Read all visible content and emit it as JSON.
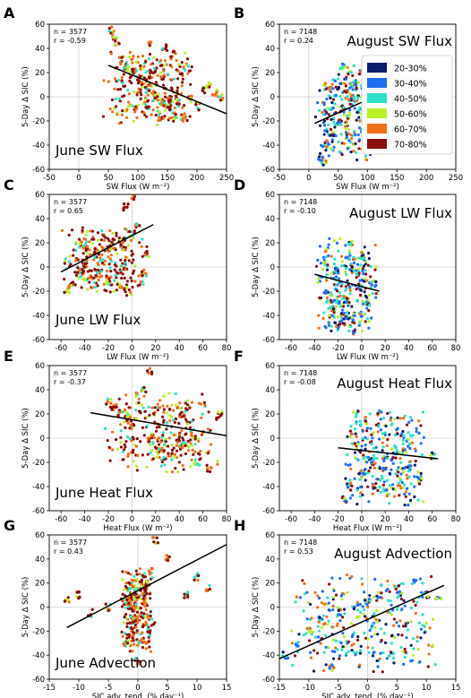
{
  "legend": {
    "title": "",
    "placement": "inside panel B, right",
    "entries": [
      {
        "label": "20-30%",
        "color": "#0b1d6b"
      },
      {
        "label": "30-40%",
        "color": "#1f6ef0"
      },
      {
        "label": "40-50%",
        "color": "#2fe0c8"
      },
      {
        "label": "50-60%",
        "color": "#b8f02a"
      },
      {
        "label": "60-70%",
        "color": "#f07018"
      },
      {
        "label": "70-80%",
        "color": "#8b0f0f"
      }
    ]
  },
  "chart_data": [
    {
      "type": "scatter",
      "panel": "A",
      "title": "June SW Flux",
      "xlabel": "SW Flux (W m⁻²)",
      "ylabel": "5-Day Δ SIC (%)",
      "stats": {
        "n": "n = 3577",
        "r": "r = -0.59"
      },
      "xlim": [
        -50,
        250
      ],
      "ylim": [
        -60,
        60
      ],
      "xticks": [
        "-50",
        "0",
        "50",
        "100",
        "150",
        "200",
        "250"
      ],
      "yticks": [
        "-60",
        "-40",
        "-20",
        "0",
        "20",
        "40",
        "60"
      ],
      "fit_line": {
        "x": [
          50,
          250
        ],
        "y": [
          26,
          -14
        ]
      },
      "cluster": {
        "xmin": 40,
        "xmax": 200,
        "ymin": -25,
        "ymax": 40,
        "color_bias": "warm"
      },
      "points": [
        [
          55,
          55
        ],
        [
          60,
          50
        ],
        [
          65,
          45
        ],
        [
          70,
          30
        ],
        [
          80,
          25
        ],
        [
          90,
          20
        ],
        [
          100,
          15
        ],
        [
          110,
          10
        ],
        [
          120,
          8
        ],
        [
          130,
          0
        ],
        [
          140,
          -5
        ],
        [
          150,
          -10
        ],
        [
          160,
          -15
        ],
        [
          170,
          -5
        ],
        [
          180,
          -18
        ],
        [
          190,
          0
        ],
        [
          200,
          -8
        ],
        [
          210,
          5
        ],
        [
          220,
          10
        ],
        [
          230,
          3
        ],
        [
          240,
          0
        ],
        [
          120,
          45
        ],
        [
          145,
          40
        ],
        [
          160,
          35
        ]
      ]
    },
    {
      "type": "scatter",
      "panel": "B",
      "title": "August SW Flux",
      "xlabel": "SW Flux (W m⁻²)",
      "ylabel": "5-Day Δ SIC (%)",
      "stats": {
        "n": "n = 7148",
        "r": "r = 0.24"
      },
      "xlim": [
        -50,
        250
      ],
      "ylim": [
        -60,
        60
      ],
      "xticks": [
        "-50",
        "0",
        "50",
        "100",
        "150",
        "200",
        "250"
      ],
      "yticks": [
        "-60",
        "-40",
        "-20",
        "0",
        "20",
        "40",
        "60"
      ],
      "fit_line": {
        "x": [
          10,
          120
        ],
        "y": [
          -22,
          2
        ]
      },
      "cluster": {
        "xmin": 10,
        "xmax": 120,
        "ymin": -55,
        "ymax": 28,
        "color_bias": "mixed"
      },
      "points": [
        [
          20,
          -50
        ],
        [
          25,
          -55
        ],
        [
          30,
          -40
        ],
        [
          40,
          -30
        ],
        [
          50,
          -20
        ],
        [
          60,
          -10
        ],
        [
          70,
          0
        ],
        [
          80,
          10
        ],
        [
          90,
          20
        ],
        [
          100,
          15
        ],
        [
          110,
          5
        ],
        [
          60,
          25
        ]
      ]
    },
    {
      "type": "scatter",
      "panel": "C",
      "title": "June LW Flux",
      "xlabel": "LW Flux (W m⁻²)",
      "ylabel": "5-Day Δ SIC (%)",
      "stats": {
        "n": "n = 3577",
        "r": "r = 0.65"
      },
      "xlim": [
        -70,
        80
      ],
      "ylim": [
        -60,
        60
      ],
      "xticks": [
        "-60",
        "-40",
        "-20",
        "0",
        "20",
        "40",
        "60",
        "80"
      ],
      "yticks": [
        "-60",
        "-40",
        "-20",
        "0",
        "20",
        "40",
        "60"
      ],
      "fit_line": {
        "x": [
          -60,
          18
        ],
        "y": [
          -4,
          35
        ]
      },
      "cluster": {
        "xmin": -60,
        "xmax": 15,
        "ymin": -25,
        "ymax": 35,
        "color_bias": "warm"
      },
      "points": [
        [
          -55,
          -20
        ],
        [
          -50,
          -15
        ],
        [
          -45,
          -5
        ],
        [
          -40,
          5
        ],
        [
          -30,
          10
        ],
        [
          -20,
          15
        ],
        [
          -10,
          20
        ],
        [
          0,
          28
        ],
        [
          5,
          35
        ],
        [
          10,
          -5
        ],
        [
          -5,
          50
        ],
        [
          0,
          58
        ],
        [
          12,
          10
        ]
      ]
    },
    {
      "type": "scatter",
      "panel": "D",
      "title": "August LW Flux",
      "xlabel": "LW Flux (W m⁻²)",
      "ylabel": "5-Day Δ SIC (%)",
      "stats": {
        "n": "n = 7148",
        "r": "r = -0.10"
      },
      "xlim": [
        -70,
        80
      ],
      "ylim": [
        -60,
        60
      ],
      "xticks": [
        "-60",
        "-40",
        "-20",
        "0",
        "20",
        "40",
        "60",
        "80"
      ],
      "yticks": [
        "-60",
        "-40",
        "-20",
        "0",
        "20",
        "40",
        "60"
      ],
      "fit_line": {
        "x": [
          -40,
          15
        ],
        "y": [
          -6,
          -20
        ]
      },
      "cluster": {
        "xmin": -40,
        "xmax": 15,
        "ymin": -58,
        "ymax": 25,
        "color_bias": "mixed"
      },
      "points": [
        [
          -35,
          -10
        ],
        [
          -30,
          -20
        ],
        [
          -25,
          -35
        ],
        [
          -20,
          -50
        ],
        [
          -15,
          -45
        ],
        [
          -10,
          20
        ],
        [
          -5,
          -55
        ],
        [
          0,
          10
        ],
        [
          5,
          -30
        ],
        [
          10,
          -15
        ]
      ]
    },
    {
      "type": "scatter",
      "panel": "E",
      "title": "June Heat Flux",
      "xlabel": "Heat Flux (W m⁻²)",
      "ylabel": "5-Day Δ SIC (%)",
      "stats": {
        "n": "n = 3577",
        "r": "r = -0.37"
      },
      "xlim": [
        -70,
        80
      ],
      "ylim": [
        -60,
        60
      ],
      "xticks": [
        "-60",
        "-40",
        "-20",
        "0",
        "20",
        "40",
        "60",
        "80"
      ],
      "yticks": [
        "-60",
        "-40",
        "-20",
        "0",
        "20",
        "40",
        "60"
      ],
      "fit_line": {
        "x": [
          -35,
          80
        ],
        "y": [
          21,
          2
        ]
      },
      "cluster": {
        "xmin": -25,
        "xmax": 75,
        "ymin": -30,
        "ymax": 38,
        "color_bias": "warm"
      },
      "points": [
        [
          -20,
          30
        ],
        [
          -15,
          25
        ],
        [
          -10,
          20
        ],
        [
          -5,
          15
        ],
        [
          0,
          10
        ],
        [
          5,
          35
        ],
        [
          10,
          40
        ],
        [
          15,
          0
        ],
        [
          25,
          -10
        ],
        [
          35,
          -15
        ],
        [
          45,
          -5
        ],
        [
          55,
          -20
        ],
        [
          65,
          -25
        ],
        [
          75,
          20
        ],
        [
          15,
          55
        ]
      ]
    },
    {
      "type": "scatter",
      "panel": "F",
      "title": "August Heat Flux",
      "xlabel": "Heat Flux (W m⁻²)",
      "ylabel": "5-Day Δ SIC (%)",
      "stats": {
        "n": "n = 7148",
        "r": "r = -0.08"
      },
      "xlim": [
        -70,
        80
      ],
      "ylim": [
        -60,
        60
      ],
      "xticks": [
        "-60",
        "-40",
        "-20",
        "0",
        "20",
        "40",
        "60",
        "80"
      ],
      "yticks": [
        "-60",
        "-40",
        "-20",
        "0",
        "20",
        "40",
        "60"
      ],
      "fit_line": {
        "x": [
          -20,
          65
        ],
        "y": [
          -8,
          -17
        ]
      },
      "cluster": {
        "xmin": -20,
        "xmax": 60,
        "ymin": -58,
        "ymax": 25,
        "color_bias": "mixed"
      },
      "points": [
        [
          -15,
          -50
        ],
        [
          -10,
          -40
        ],
        [
          -5,
          20
        ],
        [
          0,
          -30
        ],
        [
          5,
          15
        ],
        [
          10,
          -20
        ],
        [
          15,
          22
        ],
        [
          20,
          -45
        ],
        [
          30,
          -10
        ],
        [
          40,
          -25
        ],
        [
          50,
          -35
        ],
        [
          60,
          -15
        ]
      ]
    },
    {
      "type": "scatter",
      "panel": "G",
      "title": "June Advection",
      "xlabel": "SIC adv. tend. (% day⁻¹)",
      "ylabel": "5-Day Δ SIC (%)",
      "stats": {
        "n": "n = 3577",
        "r": "r = 0.43"
      },
      "xlim": [
        -15,
        15
      ],
      "ylim": [
        -60,
        60
      ],
      "xticks": [
        "-15",
        "-10",
        "-5",
        "0",
        "5",
        "10",
        "15"
      ],
      "yticks": [
        "-60",
        "-40",
        "-20",
        "0",
        "20",
        "40",
        "60"
      ],
      "fit_line": {
        "x": [
          -12,
          15
        ],
        "y": [
          -17,
          52
        ]
      },
      "cluster": {
        "xmin": -3,
        "xmax": 3,
        "ymin": -40,
        "ymax": 35,
        "color_bias": "warm"
      },
      "points": [
        [
          -12,
          5
        ],
        [
          -10,
          10
        ],
        [
          -8,
          -5
        ],
        [
          -5,
          0
        ],
        [
          -2,
          -30
        ],
        [
          0,
          -45
        ],
        [
          1,
          20
        ],
        [
          2,
          30
        ],
        [
          3,
          55
        ],
        [
          5,
          40
        ],
        [
          8,
          10
        ],
        [
          10,
          25
        ],
        [
          12,
          15
        ]
      ]
    },
    {
      "type": "scatter",
      "panel": "H",
      "title": "August Advection",
      "xlabel": "SIC adv. tend. (% day⁻¹)",
      "ylabel": "5-Day Δ SIC (%)",
      "stats": {
        "n": "n = 7148",
        "r": "r = 0.53"
      },
      "xlim": [
        -15,
        15
      ],
      "ylim": [
        -60,
        60
      ],
      "xticks": [
        "-15",
        "-10",
        "-5",
        "0",
        "5",
        "10",
        "15"
      ],
      "yticks": [
        "-60",
        "-40",
        "-20",
        "0",
        "20",
        "40",
        "60"
      ],
      "fit_line": {
        "x": [
          -15,
          13
        ],
        "y": [
          -43,
          18
        ]
      },
      "cluster": {
        "xmin": -14,
        "xmax": 13,
        "ymin": -55,
        "ymax": 28,
        "color_bias": "mixed"
      },
      "points": [
        [
          -14,
          -40
        ],
        [
          -12,
          -30
        ],
        [
          -10,
          -20
        ],
        [
          -8,
          -10
        ],
        [
          -5,
          -5
        ],
        [
          -2,
          0
        ],
        [
          0,
          5
        ],
        [
          2,
          10
        ],
        [
          5,
          15
        ],
        [
          8,
          20
        ],
        [
          10,
          10
        ],
        [
          12,
          5
        ],
        [
          -6,
          -50
        ],
        [
          4,
          -40
        ]
      ]
    }
  ]
}
